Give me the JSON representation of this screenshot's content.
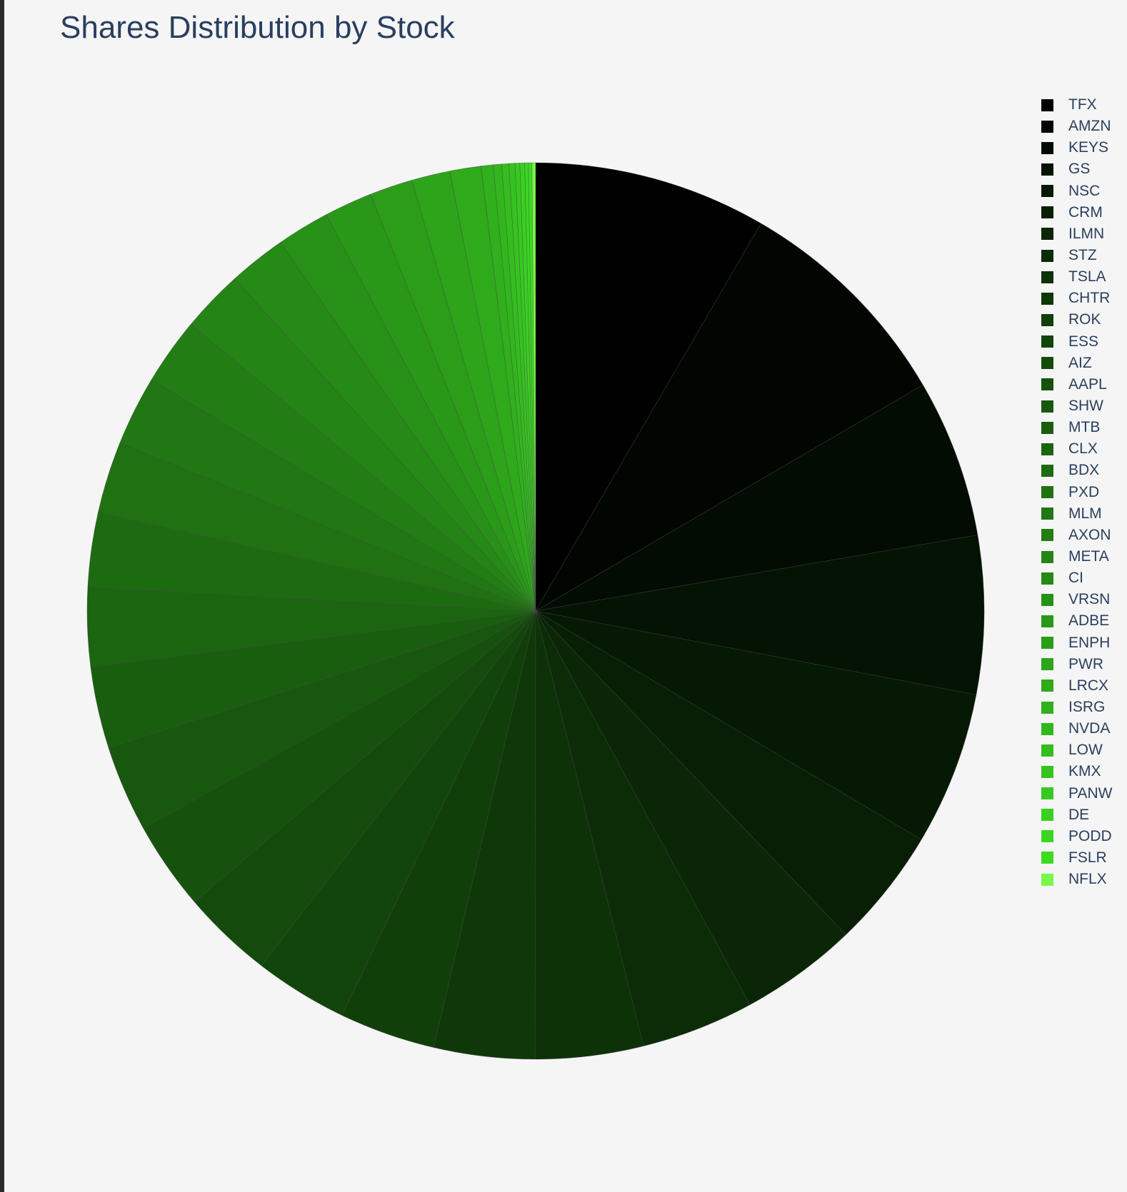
{
  "chart_data": {
    "type": "pie",
    "title": "Shares Distribution by Stock",
    "legend_position": "right",
    "start_angle_deg": 90,
    "direction": "clockwise",
    "color_scale": [
      "#000000",
      "#77f749"
    ],
    "slices": [
      {
        "label": "TFX",
        "value": 9.7,
        "color": "#000000"
      },
      {
        "label": "AMZN",
        "value": 9.5,
        "color": "#010601"
      },
      {
        "label": "KEYS",
        "value": 6.6,
        "color": "#030c02"
      },
      {
        "label": "GS",
        "value": 6.6,
        "color": "#041303"
      },
      {
        "label": "NSC",
        "value": 6.4,
        "color": "#061904"
      },
      {
        "label": "CRM",
        "value": 5.0,
        "color": "#081f05"
      },
      {
        "label": "ILMN",
        "value": 4.9,
        "color": "#0a2606"
      },
      {
        "label": "STZ",
        "value": 4.7,
        "color": "#0b2c07"
      },
      {
        "label": "TSLA",
        "value": 4.5,
        "color": "#0d3208"
      },
      {
        "label": "CHTR",
        "value": 4.2,
        "color": "#0f3809"
      },
      {
        "label": "ROK",
        "value": 4.0,
        "color": "#113f0a"
      },
      {
        "label": "ESS",
        "value": 3.9,
        "color": "#12450b"
      },
      {
        "label": "AIZ",
        "value": 3.8,
        "color": "#144b0c"
      },
      {
        "label": "AAPL",
        "value": 3.7,
        "color": "#16520d"
      },
      {
        "label": "SHW",
        "value": 3.6,
        "color": "#18580e"
      },
      {
        "label": "MTB",
        "value": 3.4,
        "color": "#195e0f"
      },
      {
        "label": "CLX",
        "value": 3.3,
        "color": "#1b6510"
      },
      {
        "label": "BDX",
        "value": 3.1,
        "color": "#1d6b11"
      },
      {
        "label": "PXD",
        "value": 3.0,
        "color": "#1f7112"
      },
      {
        "label": "MLM",
        "value": 2.9,
        "color": "#207713"
      },
      {
        "label": "AXON",
        "value": 2.8,
        "color": "#227e14"
      },
      {
        "label": "META",
        "value": 2.6,
        "color": "#248415"
      },
      {
        "label": "CI",
        "value": 2.4,
        "color": "#268a16"
      },
      {
        "label": "VRSN",
        "value": 2.2,
        "color": "#279117"
      },
      {
        "label": "ADBE",
        "value": 2.0,
        "color": "#299718"
      },
      {
        "label": "ENPH",
        "value": 1.8,
        "color": "#2b9d19"
      },
      {
        "label": "PWR",
        "value": 1.6,
        "color": "#2da41a"
      },
      {
        "label": "LRCX",
        "value": 1.3,
        "color": "#2eaa1b"
      },
      {
        "label": "ISRG",
        "value": 0.5,
        "color": "#30b01c"
      },
      {
        "label": "NVDA",
        "value": 0.35,
        "color": "#32b61d"
      },
      {
        "label": "LOW",
        "value": 0.3,
        "color": "#34bd1e"
      },
      {
        "label": "KMX",
        "value": 0.25,
        "color": "#35c31f"
      },
      {
        "label": "PANW",
        "value": 0.2,
        "color": "#37c920"
      },
      {
        "label": "DE",
        "value": 0.2,
        "color": "#39d021"
      },
      {
        "label": "PODD",
        "value": 0.15,
        "color": "#3bd622"
      },
      {
        "label": "FSLR",
        "value": 0.15,
        "color": "#3ddc23"
      },
      {
        "label": "NFLX",
        "value": 0.15,
        "color": "#77f749"
      }
    ]
  }
}
